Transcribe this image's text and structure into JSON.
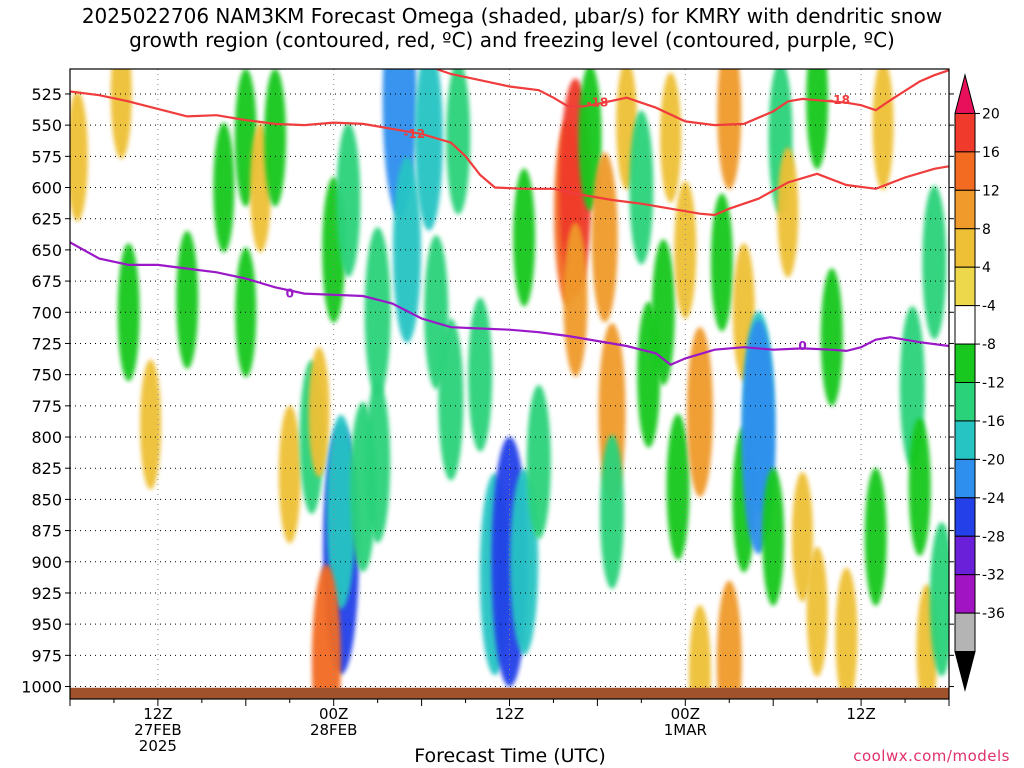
{
  "title": {
    "line1": "2025022706 NAM3KM Forecast Omega (shaded, μbar/s) for KMRY with dendritic snow",
    "line2": "growth region (contoured, red, ºC) and freezing level (contoured, purple, ºC)"
  },
  "x_axis_label": "Forecast Time (UTC)",
  "credit": "coolwx.com/models",
  "chart_data": {
    "type": "heatmap",
    "title": "2025022706 NAM3KM Forecast Omega (shaded, μbar/s) for KMRY with dendritic snow growth region (contoured, red, ºC) and freezing level (contoured, purple, ºC)",
    "xlabel": "Forecast Time (UTC)",
    "ylabel": "",
    "x_range_hours": [
      0,
      60
    ],
    "x_ticks": [
      {
        "hour": 6,
        "lines": [
          "12Z",
          "27FEB",
          "2025"
        ]
      },
      {
        "hour": 18,
        "lines": [
          "00Z",
          "28FEB"
        ]
      },
      {
        "hour": 30,
        "lines": [
          "12Z"
        ]
      },
      {
        "hour": 42,
        "lines": [
          "00Z",
          "1MAR"
        ]
      },
      {
        "hour": 54,
        "lines": [
          "12Z"
        ]
      }
    ],
    "y_axis": {
      "unit": "hPa",
      "range": [
        1010,
        505
      ],
      "inverted": true,
      "ticks": [
        525,
        550,
        575,
        600,
        625,
        650,
        675,
        700,
        725,
        750,
        775,
        800,
        825,
        850,
        875,
        900,
        925,
        950,
        975,
        1000
      ]
    },
    "colorbar": {
      "labels": [
        20,
        16,
        12,
        8,
        4,
        -4,
        -8,
        -12,
        -16,
        -20,
        -24,
        -28,
        -32,
        -36
      ],
      "colors": [
        "#e8105a",
        "#ef3a2c",
        "#f26b21",
        "#ef9a2a",
        "#eec035",
        "#ecd84a",
        "#ffffff",
        "#18c81e",
        "#2ad27a",
        "#27c4c4",
        "#2f8fee",
        "#2440e8",
        "#6a20d8",
        "#a114c4",
        "#b4b4b4",
        "#000000"
      ]
    },
    "omega_cells": [
      {
        "hour": 0.5,
        "p": 575,
        "value": 5
      },
      {
        "hour": 3.5,
        "p": 525,
        "value": 5
      },
      {
        "hour": 4,
        "p": 700,
        "value": -6
      },
      {
        "hour": 5.5,
        "p": 790,
        "value": 5
      },
      {
        "hour": 8,
        "p": 690,
        "value": -6
      },
      {
        "hour": 10.5,
        "p": 600,
        "value": -5
      },
      {
        "hour": 12,
        "p": 560,
        "value": -6
      },
      {
        "hour": 12,
        "p": 700,
        "value": -5
      },
      {
        "hour": 13,
        "p": 600,
        "value": 5
      },
      {
        "hour": 14,
        "p": 560,
        "value": -6
      },
      {
        "hour": 15,
        "p": 830,
        "value": 6
      },
      {
        "hour": 16.5,
        "p": 800,
        "value": -8
      },
      {
        "hour": 17,
        "p": 780,
        "value": 5
      },
      {
        "hour": 18,
        "p": 650,
        "value": -7
      },
      {
        "hour": 18.5,
        "p": 890,
        "value": -22
      },
      {
        "hour": 18.5,
        "p": 860,
        "value": -13
      },
      {
        "hour": 17.5,
        "p": 980,
        "value": 13
      },
      {
        "hour": 19,
        "p": 610,
        "value": -8
      },
      {
        "hour": 20,
        "p": 840,
        "value": -10
      },
      {
        "hour": 21,
        "p": 700,
        "value": -10
      },
      {
        "hour": 21,
        "p": 820,
        "value": -9
      },
      {
        "hour": 22.5,
        "p": 530,
        "value": -18
      },
      {
        "hour": 23,
        "p": 650,
        "value": -12
      },
      {
        "hour": 24.5,
        "p": 560,
        "value": -12
      },
      {
        "hour": 25,
        "p": 700,
        "value": -8
      },
      {
        "hour": 26,
        "p": 770,
        "value": -9
      },
      {
        "hour": 26.5,
        "p": 560,
        "value": -8
      },
      {
        "hour": 28,
        "p": 750,
        "value": -8
      },
      {
        "hour": 29,
        "p": 910,
        "value": -14
      },
      {
        "hour": 30,
        "p": 900,
        "value": -20
      },
      {
        "hour": 31,
        "p": 900,
        "value": -12
      },
      {
        "hour": 31,
        "p": 640,
        "value": -6
      },
      {
        "hour": 32,
        "p": 820,
        "value": -8
      },
      {
        "hour": 34,
        "p": 620,
        "value": 12
      },
      {
        "hour": 34.5,
        "p": 600,
        "value": 16
      },
      {
        "hour": 34.5,
        "p": 690,
        "value": 8
      },
      {
        "hour": 35.5,
        "p": 560,
        "value": -7
      },
      {
        "hour": 36.5,
        "p": 640,
        "value": 10
      },
      {
        "hour": 37,
        "p": 780,
        "value": 11
      },
      {
        "hour": 37,
        "p": 860,
        "value": -8
      },
      {
        "hour": 38,
        "p": 550,
        "value": 5
      },
      {
        "hour": 39,
        "p": 600,
        "value": -8
      },
      {
        "hour": 39.5,
        "p": 750,
        "value": -7
      },
      {
        "hour": 40.5,
        "p": 700,
        "value": -7
      },
      {
        "hour": 41,
        "p": 560,
        "value": 5
      },
      {
        "hour": 41.5,
        "p": 840,
        "value": -7
      },
      {
        "hour": 42,
        "p": 650,
        "value": 6
      },
      {
        "hour": 43,
        "p": 780,
        "value": 10
      },
      {
        "hour": 43,
        "p": 990,
        "value": 6
      },
      {
        "hour": 44.5,
        "p": 660,
        "value": -6
      },
      {
        "hour": 45,
        "p": 540,
        "value": 8
      },
      {
        "hour": 45,
        "p": 980,
        "value": 9
      },
      {
        "hour": 46,
        "p": 700,
        "value": 6
      },
      {
        "hour": 46,
        "p": 850,
        "value": -7
      },
      {
        "hour": 47,
        "p": 780,
        "value": -14
      },
      {
        "hour": 47,
        "p": 800,
        "value": -18
      },
      {
        "hour": 48,
        "p": 880,
        "value": -6
      },
      {
        "hour": 48.5,
        "p": 560,
        "value": -8
      },
      {
        "hour": 49,
        "p": 620,
        "value": 5
      },
      {
        "hour": 50,
        "p": 880,
        "value": 5
      },
      {
        "hour": 51,
        "p": 530,
        "value": -6
      },
      {
        "hour": 51,
        "p": 940,
        "value": 5
      },
      {
        "hour": 52,
        "p": 720,
        "value": -6
      },
      {
        "hour": 53,
        "p": 960,
        "value": 6
      },
      {
        "hour": 55.5,
        "p": 550,
        "value": 5
      },
      {
        "hour": 55,
        "p": 880,
        "value": -6
      },
      {
        "hour": 57.5,
        "p": 760,
        "value": -9
      },
      {
        "hour": 58,
        "p": 840,
        "value": -6
      },
      {
        "hour": 59,
        "p": 660,
        "value": -8
      },
      {
        "hour": 58.5,
        "p": 970,
        "value": 5
      },
      {
        "hour": 59.5,
        "p": 930,
        "value": -8
      }
    ],
    "red_contours": [
      {
        "label": "-12",
        "label_at": {
          "hour": 23.5,
          "p": 557
        },
        "points": [
          [
            0,
            523
          ],
          [
            2,
            526
          ],
          [
            4,
            531
          ],
          [
            6,
            537
          ],
          [
            8,
            543
          ],
          [
            10,
            542
          ],
          [
            12,
            546
          ],
          [
            14,
            549
          ],
          [
            16,
            550
          ],
          [
            18,
            548
          ],
          [
            20,
            549
          ],
          [
            22,
            553
          ],
          [
            24,
            557
          ],
          [
            26,
            564
          ],
          [
            27,
            575
          ],
          [
            28,
            590
          ],
          [
            29,
            600
          ],
          [
            31,
            601
          ],
          [
            33,
            601
          ],
          [
            35,
            606
          ],
          [
            37,
            610
          ],
          [
            39,
            613
          ],
          [
            41,
            617
          ],
          [
            43,
            621
          ],
          [
            44,
            622
          ],
          [
            45,
            617
          ],
          [
            47,
            609
          ],
          [
            49,
            596
          ],
          [
            51,
            589
          ],
          [
            53,
            598
          ],
          [
            55,
            601
          ],
          [
            57,
            592
          ],
          [
            59,
            585
          ],
          [
            60,
            583
          ]
        ]
      },
      {
        "label": "-18",
        "label_at": {
          "hour": 36,
          "p": 532
        },
        "points": [
          [
            25,
            505
          ],
          [
            26,
            509
          ],
          [
            28,
            514
          ],
          [
            30,
            519
          ],
          [
            32,
            522
          ],
          [
            33,
            528
          ],
          [
            34,
            535
          ],
          [
            35,
            535
          ],
          [
            36,
            533
          ],
          [
            38,
            528
          ],
          [
            40,
            536
          ],
          [
            42,
            547
          ],
          [
            44,
            550
          ],
          [
            46,
            549
          ],
          [
            48,
            539
          ],
          [
            49,
            531
          ],
          [
            50,
            529
          ],
          [
            51,
            530
          ],
          [
            52,
            531
          ],
          [
            53,
            532
          ],
          [
            54,
            534
          ],
          [
            55,
            538
          ],
          [
            56,
            530
          ],
          [
            58,
            515
          ],
          [
            59,
            510
          ],
          [
            60,
            506
          ]
        ]
      },
      {
        "label": "-18",
        "label_at": {
          "hour": 52.5,
          "p": 530
        },
        "points": []
      }
    ],
    "purple_contour": {
      "label": "0",
      "points": [
        [
          0,
          644
        ],
        [
          2,
          657
        ],
        [
          4,
          662
        ],
        [
          6,
          662
        ],
        [
          8,
          665
        ],
        [
          10,
          668
        ],
        [
          12,
          673
        ],
        [
          14,
          680
        ],
        [
          16,
          685
        ],
        [
          18,
          686
        ],
        [
          20,
          687
        ],
        [
          22,
          693
        ],
        [
          24,
          705
        ],
        [
          26,
          712
        ],
        [
          28,
          713
        ],
        [
          30,
          714
        ],
        [
          32,
          716
        ],
        [
          34,
          719
        ],
        [
          36,
          723
        ],
        [
          38,
          727
        ],
        [
          40,
          733
        ],
        [
          41,
          742
        ],
        [
          42,
          737
        ],
        [
          44,
          730
        ],
        [
          46,
          728
        ],
        [
          48,
          730
        ],
        [
          50,
          729
        ],
        [
          52,
          730
        ],
        [
          53,
          731
        ],
        [
          54,
          728
        ],
        [
          55,
          722
        ],
        [
          56,
          720
        ],
        [
          58,
          724
        ],
        [
          60,
          727
        ]
      ],
      "labels_at": [
        {
          "hour": 15,
          "p": 685
        },
        {
          "hour": 50,
          "p": 727
        }
      ]
    },
    "terrain_band": {
      "p_top": 1001,
      "color": "#a0522d"
    }
  }
}
